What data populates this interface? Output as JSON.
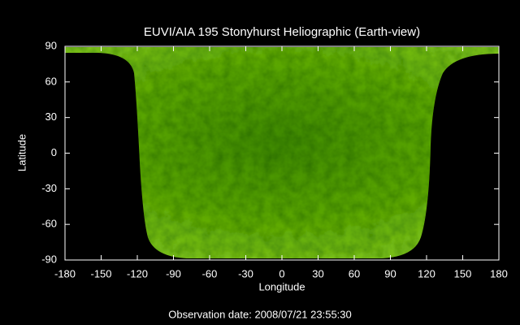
{
  "chart_data": {
    "type": "image",
    "title": "EUVI/AIA 195 Stonyhurst Heliographic (Earth-view)",
    "xlabel": "Longitude",
    "ylabel": "Latitude",
    "xlim": [
      -180,
      180
    ],
    "ylim": [
      -90,
      90
    ],
    "xticks": [
      -180,
      -150,
      -120,
      -90,
      -60,
      -30,
      0,
      30,
      60,
      90,
      120,
      150,
      180
    ],
    "yticks": [
      -90,
      -60,
      -30,
      0,
      30,
      60,
      90
    ],
    "annotation": "Observation date: 2008/07/21 23:55:30"
  }
}
